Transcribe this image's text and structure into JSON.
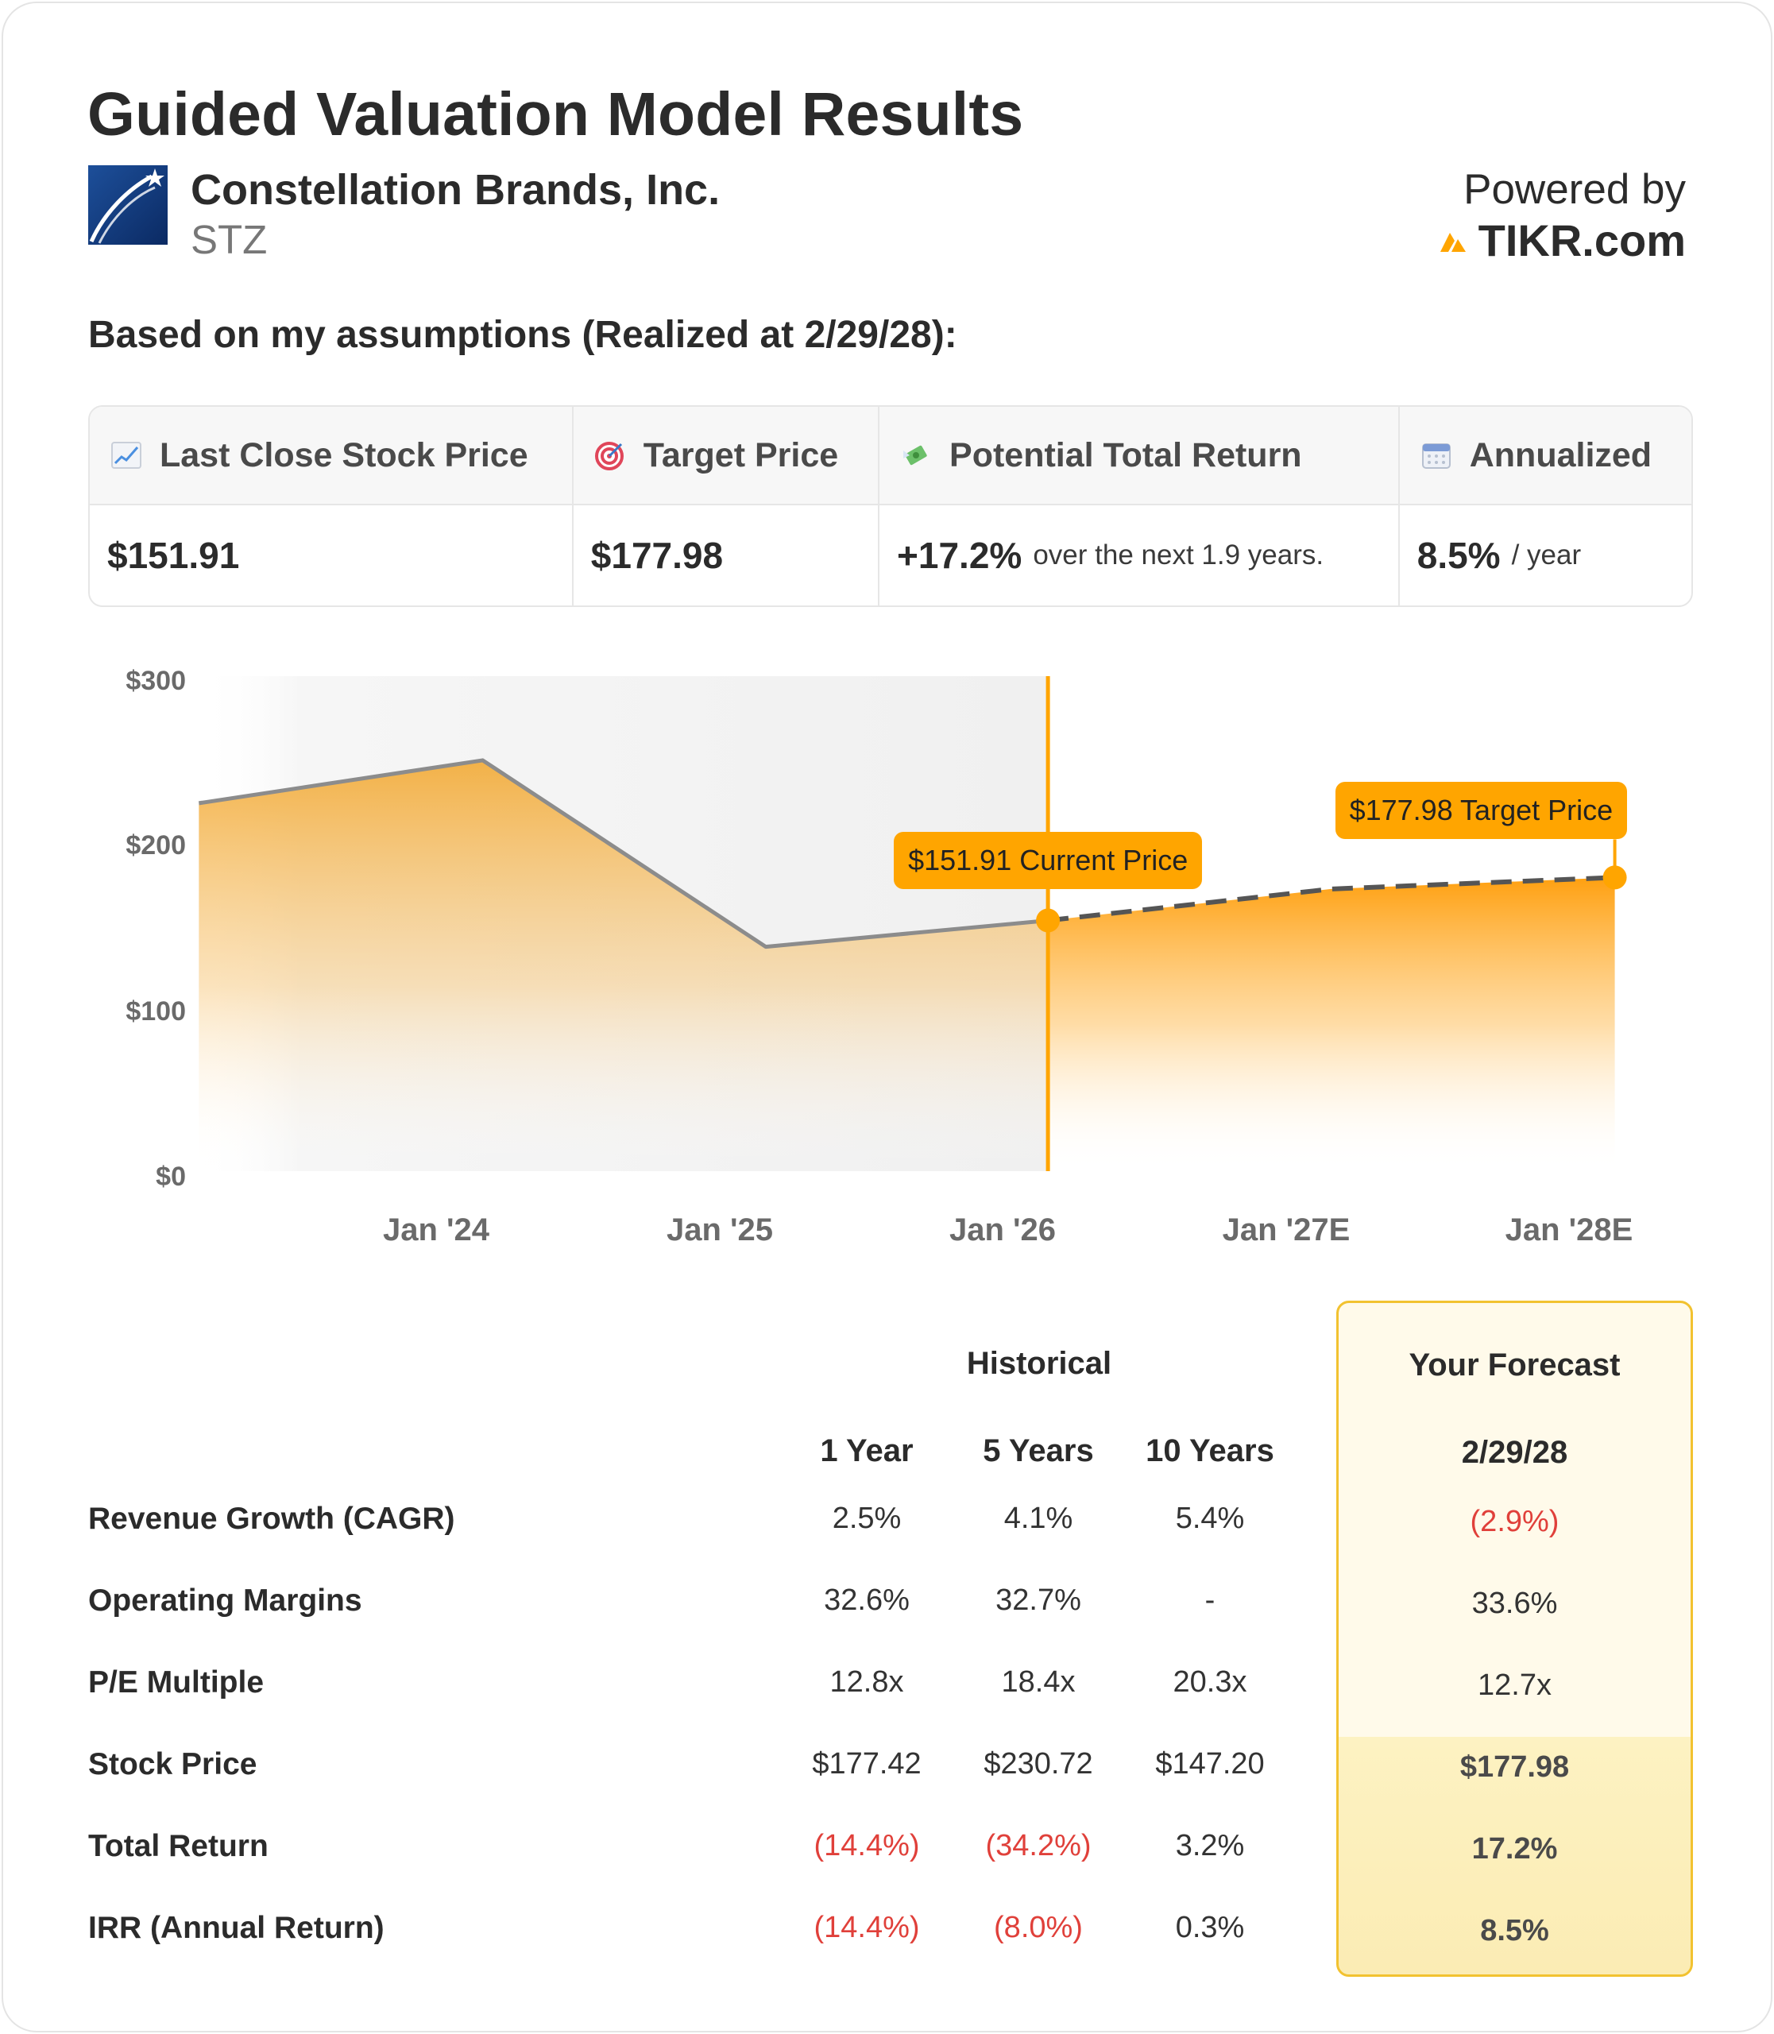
{
  "header": {
    "title": "Guided Valuation Model Results",
    "company_name": "Constellation Brands, Inc.",
    "ticker": "STZ",
    "powered_by_label": "Powered by",
    "powered_by_brand": "TIKR.com"
  },
  "assumptions_text": "Based on my assumptions (Realized at 2/29/28):",
  "summary": {
    "last_close": {
      "label": "Last Close Stock Price",
      "icon": "chart-increasing-icon",
      "value": "$151.91"
    },
    "target": {
      "label": "Target Price",
      "icon": "target-icon",
      "value": "$177.98"
    },
    "potential_return": {
      "label": "Potential Total Return",
      "icon": "money-with-wings-icon",
      "value": "+17.2%",
      "suffix": "over the next 1.9 years."
    },
    "annualized": {
      "label": "Annualized",
      "icon": "calendar-icon",
      "value": "8.5%",
      "suffix": "/ year"
    }
  },
  "chart_data": {
    "type": "area",
    "y_tick_labels": [
      "$300",
      "$200",
      "$100",
      "$0"
    ],
    "ylim": [
      0,
      300
    ],
    "x_tick_labels": [
      "Jan '24",
      "Jan '25",
      "Jan '26",
      "Jan '27E",
      "Jan '28E"
    ],
    "historical": {
      "x": [
        "2023-03-01",
        "2024-03-01",
        "2025-03-01",
        "2026-02-28"
      ],
      "y": [
        223,
        249,
        136,
        151.91
      ]
    },
    "forecast": {
      "x": [
        "2026-02-28",
        "2027-02-28",
        "2028-02-29"
      ],
      "y": [
        151.91,
        171,
        177.98
      ]
    },
    "current_date": "2026-02-28",
    "callouts": {
      "current": "$151.91 Current Price",
      "target": "$177.98 Target Price"
    },
    "colors": {
      "area": "#ffa500",
      "line": "#8c8c8c",
      "marker": "#ffa500",
      "shade": "#f1f1f1"
    }
  },
  "metrics": {
    "historical_title": "Historical",
    "forecast_title": "Your Forecast",
    "columns": [
      "1 Year",
      "5 Years",
      "10 Years"
    ],
    "forecast_date": "2/29/28",
    "rows": [
      {
        "label": "Revenue Growth (CAGR)",
        "values": [
          "2.5%",
          "4.1%",
          "5.4%"
        ],
        "forecast": "(2.9%)"
      },
      {
        "label": "Operating Margins",
        "values": [
          "32.6%",
          "32.7%",
          "-"
        ],
        "forecast": "33.6%"
      },
      {
        "label": "P/E Multiple",
        "values": [
          "12.8x",
          "18.4x",
          "20.3x"
        ],
        "forecast": "12.7x"
      },
      {
        "label": "Stock Price",
        "values": [
          "$177.42",
          "$230.72",
          "$147.20"
        ],
        "forecast": "$177.98"
      },
      {
        "label": "Total Return",
        "values": [
          "(14.4%)",
          "(34.2%)",
          "3.2%"
        ],
        "forecast": "17.2%"
      },
      {
        "label": "IRR (Annual Return)",
        "values": [
          "(14.4%)",
          "(8.0%)",
          "0.3%"
        ],
        "forecast": "8.5%"
      }
    ]
  }
}
